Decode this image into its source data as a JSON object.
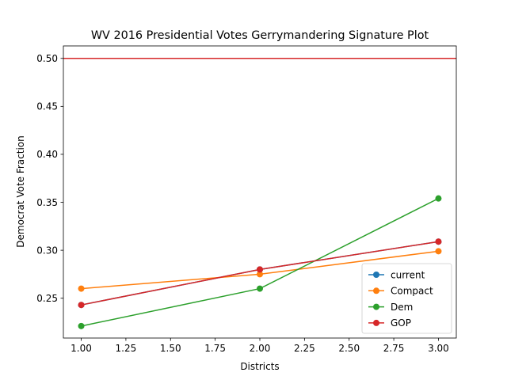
{
  "chart_data": {
    "type": "line",
    "title": "WV 2016 Presidential Votes Gerrymandering Signature Plot",
    "xlabel": "Districts",
    "ylabel": "Democrat Vote Fraction",
    "xlim": [
      0.9,
      3.1
    ],
    "ylim": [
      0.2085,
      0.513
    ],
    "x_ticks": [
      1.0,
      1.25,
      1.5,
      1.75,
      2.0,
      2.25,
      2.5,
      2.75,
      3.0
    ],
    "x_tick_labels": [
      "1.00",
      "1.25",
      "1.50",
      "1.75",
      "2.00",
      "2.25",
      "2.50",
      "2.75",
      "3.00"
    ],
    "y_ticks": [
      0.25,
      0.3,
      0.35,
      0.4,
      0.45,
      0.5
    ],
    "y_tick_labels": [
      "0.25",
      "0.30",
      "0.35",
      "0.40",
      "0.45",
      "0.50"
    ],
    "grid": false,
    "legend_position": "lower-right",
    "reference_line": {
      "y": 0.5,
      "color": "#d62728"
    },
    "x": [
      1,
      2,
      3
    ],
    "series": [
      {
        "name": "current",
        "color": "#1f77b4",
        "values": [
          0.243,
          0.28,
          0.309
        ]
      },
      {
        "name": "Compact",
        "color": "#ff7f0e",
        "values": [
          0.26,
          0.275,
          0.299
        ]
      },
      {
        "name": "Dem",
        "color": "#2ca02c",
        "values": [
          0.221,
          0.26,
          0.354
        ]
      },
      {
        "name": "GOP",
        "color": "#d62728",
        "values": [
          0.243,
          0.28,
          0.309
        ]
      }
    ]
  }
}
